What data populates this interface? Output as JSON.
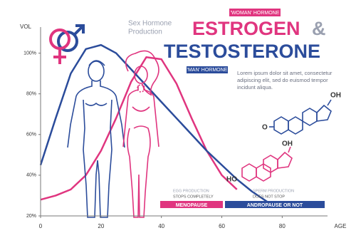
{
  "chart_data": {
    "type": "line",
    "subtitle_lines": [
      "Sex Hormone",
      "Production"
    ],
    "title_joiner": "&",
    "woman_tag": "'WOMAN' HORMONE",
    "man_tag": "'MAN' HORMONE",
    "body_lines": [
      "Lorem ipsum dolor sit amet, consectetur",
      "adipiscing elit, sed do euismod tempor",
      "incidunt aliqua."
    ],
    "ylabel": "VOL",
    "xlabel": "AGE",
    "x": [
      0,
      5,
      10,
      15,
      20,
      25,
      30,
      35,
      40,
      45,
      50,
      55,
      60,
      65,
      70,
      75
    ],
    "series": [
      {
        "name": "TESTOSTERONE",
        "color": "#2b4c9b",
        "values": [
          45,
          68,
          90,
          102,
          104,
          100,
          92,
          84,
          76,
          68,
          60,
          52,
          45,
          38,
          32,
          27
        ]
      },
      {
        "name": "ESTROGEN",
        "color": "#e0357f",
        "values": [
          28,
          30,
          33,
          40,
          52,
          68,
          86,
          98,
          97,
          85,
          68,
          52,
          40,
          33,
          null,
          null
        ]
      }
    ],
    "xlim": [
      0,
      95
    ],
    "ylim": [
      20,
      110
    ],
    "xticks": [
      0,
      20,
      40,
      60,
      80
    ],
    "yticks": [
      {
        "value": 20,
        "label": "20%"
      },
      {
        "value": 40,
        "label": "40%"
      },
      {
        "value": 60,
        "label": "60%"
      },
      {
        "value": 80,
        "label": "80%"
      },
      {
        "value": 100,
        "label": "100%"
      }
    ],
    "grid": false,
    "annotations": {
      "egg": [
        "EGG PRODUCTION",
        "STOPS COMPLETELY"
      ],
      "menopause": "MENOPAUSE",
      "sperm": [
        "SPERM PRODUCTION",
        "DOES NOT STOP"
      ],
      "andropause": "ANDROPAUSE OR NOT",
      "oh_top": "OH",
      "o_left": "O",
      "oh_bottom": "OH",
      "ho": "HO"
    }
  }
}
